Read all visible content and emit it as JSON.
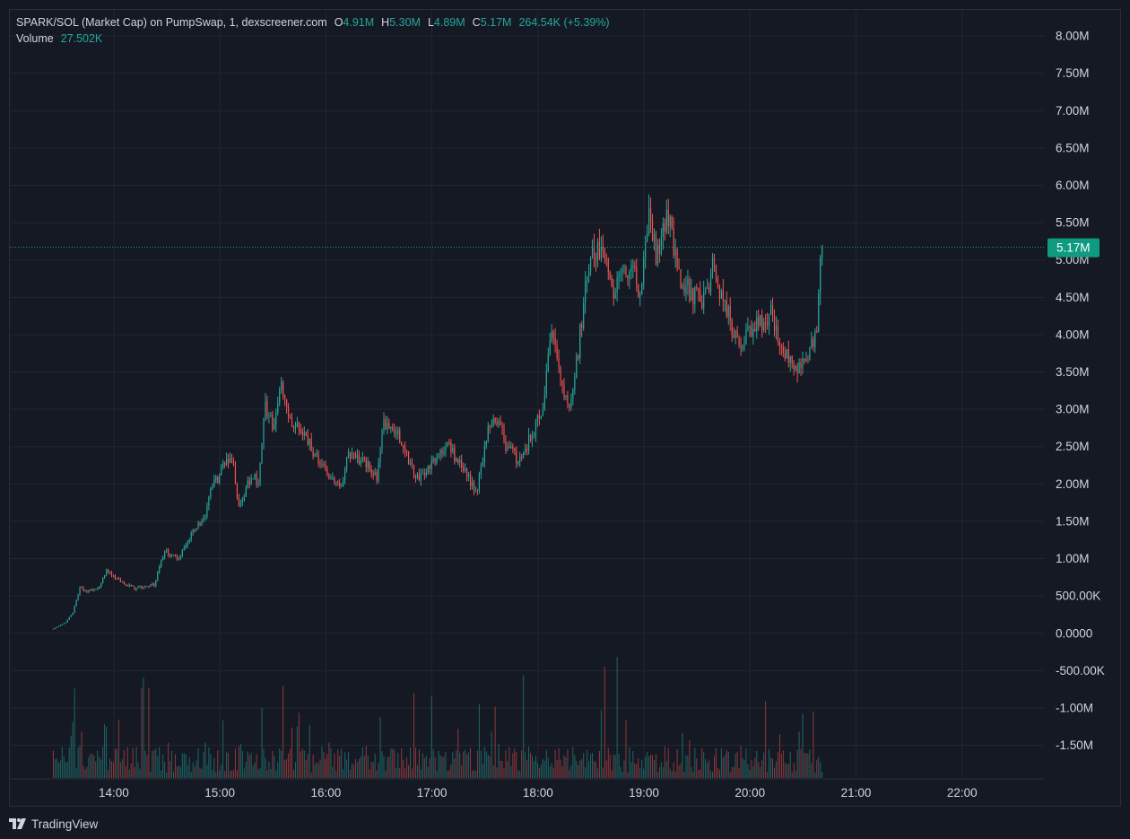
{
  "header": {
    "symbol": "SPARK/SOL (Market Cap) on PumpSwap, 1, dexscreener.com",
    "o_label": "O",
    "o_value": "4.91M",
    "h_label": "H",
    "h_value": "5.30M",
    "l_label": "L",
    "l_value": "4.89M",
    "c_label": "C",
    "c_value": "5.17M",
    "change": "264.54K (+5.39%)",
    "volume_label": "Volume",
    "volume_value": "27.502K"
  },
  "footer": {
    "brand": "TradingView"
  },
  "colors": {
    "background": "#151924",
    "grid": "#222631",
    "text": "#d1d4dc",
    "up": "#26a69a",
    "down": "#ef5350",
    "price_tag": "#0f9b7f"
  },
  "chart_data": {
    "type": "candlestick",
    "interval": "1 minute",
    "x_ticks": [
      "14:00",
      "15:00",
      "16:00",
      "17:00",
      "18:00",
      "19:00",
      "20:00",
      "21:00",
      "22:00"
    ],
    "x_range_hours": [
      13.02,
      22.78
    ],
    "data_end_hour": 20.68,
    "y_ticks": [
      "8.00M",
      "7.50M",
      "7.00M",
      "6.50M",
      "6.00M",
      "5.50M",
      "5.00M",
      "4.50M",
      "4.00M",
      "3.50M",
      "3.00M",
      "2.50M",
      "2.00M",
      "1.50M",
      "1.00M",
      "500.00K",
      "0.0000",
      "-500.00K",
      "-1.00M",
      "-1.50M"
    ],
    "y_tick_values": [
      8000000,
      7500000,
      7000000,
      6500000,
      6000000,
      5500000,
      5000000,
      4500000,
      4000000,
      3500000,
      3000000,
      2500000,
      2000000,
      1500000,
      1000000,
      500000,
      0,
      -500000,
      -1000000,
      -1500000
    ],
    "y_range": [
      -1950000,
      8350000
    ],
    "last_price": 5170000,
    "last_price_label": "5.17M",
    "price_path": [
      {
        "t": 13.43,
        "p": 60000
      },
      {
        "t": 13.55,
        "p": 150000
      },
      {
        "t": 13.62,
        "p": 300000
      },
      {
        "t": 13.68,
        "p": 620000
      },
      {
        "t": 13.75,
        "p": 560000
      },
      {
        "t": 13.87,
        "p": 620000
      },
      {
        "t": 13.93,
        "p": 850000
      },
      {
        "t": 14.05,
        "p": 700000
      },
      {
        "t": 14.2,
        "p": 600000
      },
      {
        "t": 14.38,
        "p": 650000
      },
      {
        "t": 14.48,
        "p": 1100000
      },
      {
        "t": 14.62,
        "p": 1000000
      },
      {
        "t": 14.75,
        "p": 1400000
      },
      {
        "t": 14.85,
        "p": 1500000
      },
      {
        "t": 14.93,
        "p": 2000000
      },
      {
        "t": 15.0,
        "p": 2100000
      },
      {
        "t": 15.05,
        "p": 2350000
      },
      {
        "t": 15.12,
        "p": 2300000
      },
      {
        "t": 15.18,
        "p": 1700000
      },
      {
        "t": 15.3,
        "p": 2100000
      },
      {
        "t": 15.37,
        "p": 2050000
      },
      {
        "t": 15.42,
        "p": 3100000
      },
      {
        "t": 15.5,
        "p": 2800000
      },
      {
        "t": 15.58,
        "p": 3300000
      },
      {
        "t": 15.7,
        "p": 2750000
      },
      {
        "t": 15.8,
        "p": 2700000
      },
      {
        "t": 15.93,
        "p": 2300000
      },
      {
        "t": 16.13,
        "p": 1950000
      },
      {
        "t": 16.22,
        "p": 2400000
      },
      {
        "t": 16.35,
        "p": 2300000
      },
      {
        "t": 16.48,
        "p": 2100000
      },
      {
        "t": 16.55,
        "p": 2850000
      },
      {
        "t": 16.7,
        "p": 2600000
      },
      {
        "t": 16.85,
        "p": 2050000
      },
      {
        "t": 17.0,
        "p": 2300000
      },
      {
        "t": 17.15,
        "p": 2500000
      },
      {
        "t": 17.3,
        "p": 2200000
      },
      {
        "t": 17.42,
        "p": 1850000
      },
      {
        "t": 17.52,
        "p": 2700000
      },
      {
        "t": 17.62,
        "p": 2900000
      },
      {
        "t": 17.7,
        "p": 2500000
      },
      {
        "t": 17.82,
        "p": 2300000
      },
      {
        "t": 17.92,
        "p": 2600000
      },
      {
        "t": 18.05,
        "p": 3000000
      },
      {
        "t": 18.12,
        "p": 4000000
      },
      {
        "t": 18.2,
        "p": 3600000
      },
      {
        "t": 18.3,
        "p": 2900000
      },
      {
        "t": 18.38,
        "p": 3800000
      },
      {
        "t": 18.45,
        "p": 4700000
      },
      {
        "t": 18.52,
        "p": 5100000
      },
      {
        "t": 18.62,
        "p": 5050000
      },
      {
        "t": 18.72,
        "p": 4600000
      },
      {
        "t": 18.85,
        "p": 4900000
      },
      {
        "t": 18.97,
        "p": 4600000
      },
      {
        "t": 19.05,
        "p": 5550000
      },
      {
        "t": 19.12,
        "p": 5000000
      },
      {
        "t": 19.22,
        "p": 5600000
      },
      {
        "t": 19.35,
        "p": 4700000
      },
      {
        "t": 19.55,
        "p": 4400000
      },
      {
        "t": 19.65,
        "p": 4900000
      },
      {
        "t": 19.78,
        "p": 4300000
      },
      {
        "t": 19.9,
        "p": 3850000
      },
      {
        "t": 20.05,
        "p": 4150000
      },
      {
        "t": 20.2,
        "p": 4250000
      },
      {
        "t": 20.3,
        "p": 3800000
      },
      {
        "t": 20.42,
        "p": 3500000
      },
      {
        "t": 20.58,
        "p": 3850000
      },
      {
        "t": 20.63,
        "p": 4100000
      },
      {
        "t": 20.66,
        "p": 4910000
      },
      {
        "t": 20.68,
        "p": 5170000
      }
    ]
  }
}
